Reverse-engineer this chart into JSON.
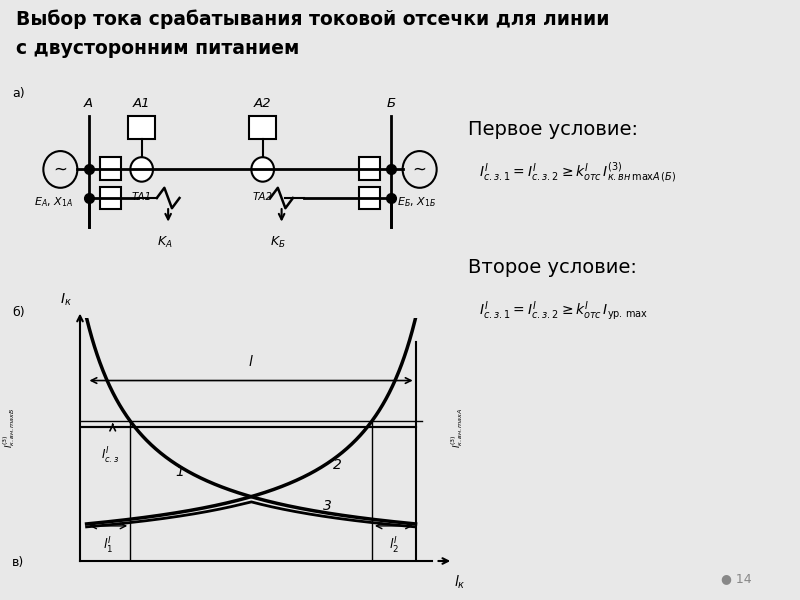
{
  "title_line1": "Выбор тока срабатывания токовой отсечки для линии",
  "title_line2": "с двусторонним питанием",
  "bg_color": "#e8e8e8",
  "white_bg": "#ffffff",
  "condition1_label": "Первое условие:",
  "condition2_label": "Второе условие:",
  "page_number": "14",
  "formula_box_color": "#7ab8e8"
}
